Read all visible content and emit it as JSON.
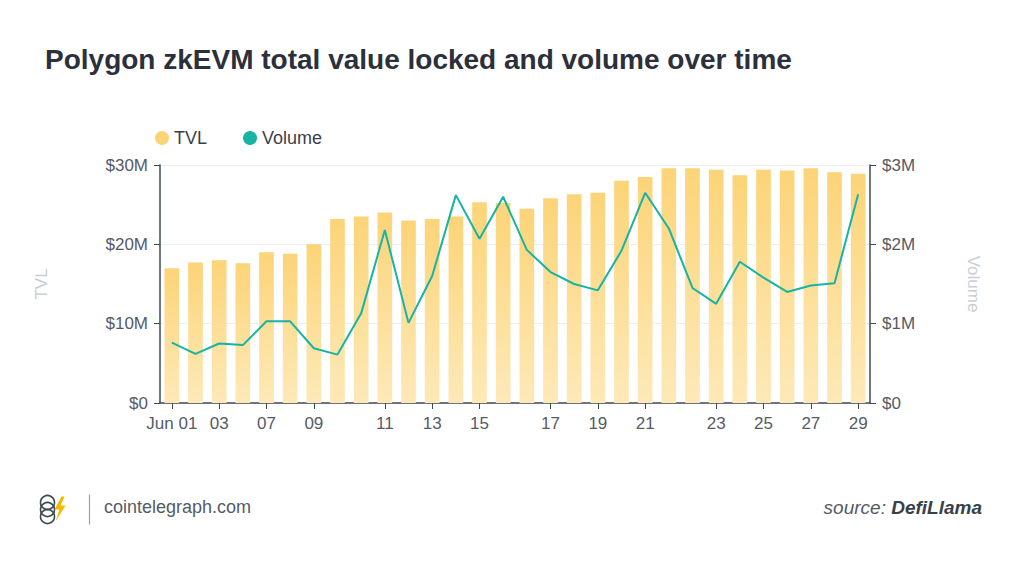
{
  "chart_data": {
    "type": "bar",
    "title": "Polygon zkEVM total value locked and volume over time",
    "y_label": "TVL",
    "y2_label": "Volume",
    "categories": [
      "Jun 01",
      null,
      "03",
      null,
      "07",
      null,
      "09",
      null,
      null,
      "11",
      null,
      "13",
      null,
      "15",
      null,
      null,
      "17",
      null,
      "19",
      null,
      "21",
      null,
      null,
      "23",
      null,
      "25",
      null,
      "27",
      null,
      "29"
    ],
    "series": [
      {
        "name": "TVL",
        "type": "bar",
        "color": "#fcd478",
        "values": [
          17000000,
          17700000,
          18000000,
          17600000,
          19000000,
          18800000,
          20000000,
          23200000,
          23500000,
          24000000,
          23000000,
          23200000,
          23500000,
          25300000,
          25200000,
          24500000,
          25800000,
          26300000,
          26500000,
          28000000,
          28500000,
          29600000,
          29600000,
          29400000,
          28700000,
          29400000,
          29300000,
          29600000,
          29100000,
          28900000
        ]
      },
      {
        "name": "Volume",
        "type": "line",
        "axis": "y2",
        "color": "#17b3a3",
        "values": [
          760000,
          620000,
          750000,
          730000,
          1030000,
          1030000,
          690000,
          610000,
          1130000,
          2180000,
          1010000,
          1600000,
          2620000,
          2070000,
          2600000,
          1930000,
          1650000,
          1500000,
          1420000,
          1920000,
          2650000,
          2200000,
          1450000,
          1250000,
          1780000,
          1580000,
          1400000,
          1480000,
          1510000,
          2630000
        ]
      }
    ],
    "ylim": [
      0,
      30000000
    ],
    "yticks": [
      {
        "value": 0,
        "label": "$0"
      },
      {
        "value": 10000000,
        "label": "$10M"
      },
      {
        "value": 20000000,
        "label": "$20M"
      },
      {
        "value": 30000000,
        "label": "$30M"
      }
    ],
    "y2lim": [
      0,
      3000000
    ],
    "y2ticks": [
      {
        "value": 0,
        "label": "$0"
      },
      {
        "value": 1000000,
        "label": "$1M"
      },
      {
        "value": 2000000,
        "label": "$2M"
      },
      {
        "value": 3000000,
        "label": "$3M"
      }
    ],
    "grid": true,
    "legend": "top-left",
    "annotations": {
      "site": "cointelegraph.com",
      "source_label": "source:",
      "source": "DefiLlama"
    }
  }
}
